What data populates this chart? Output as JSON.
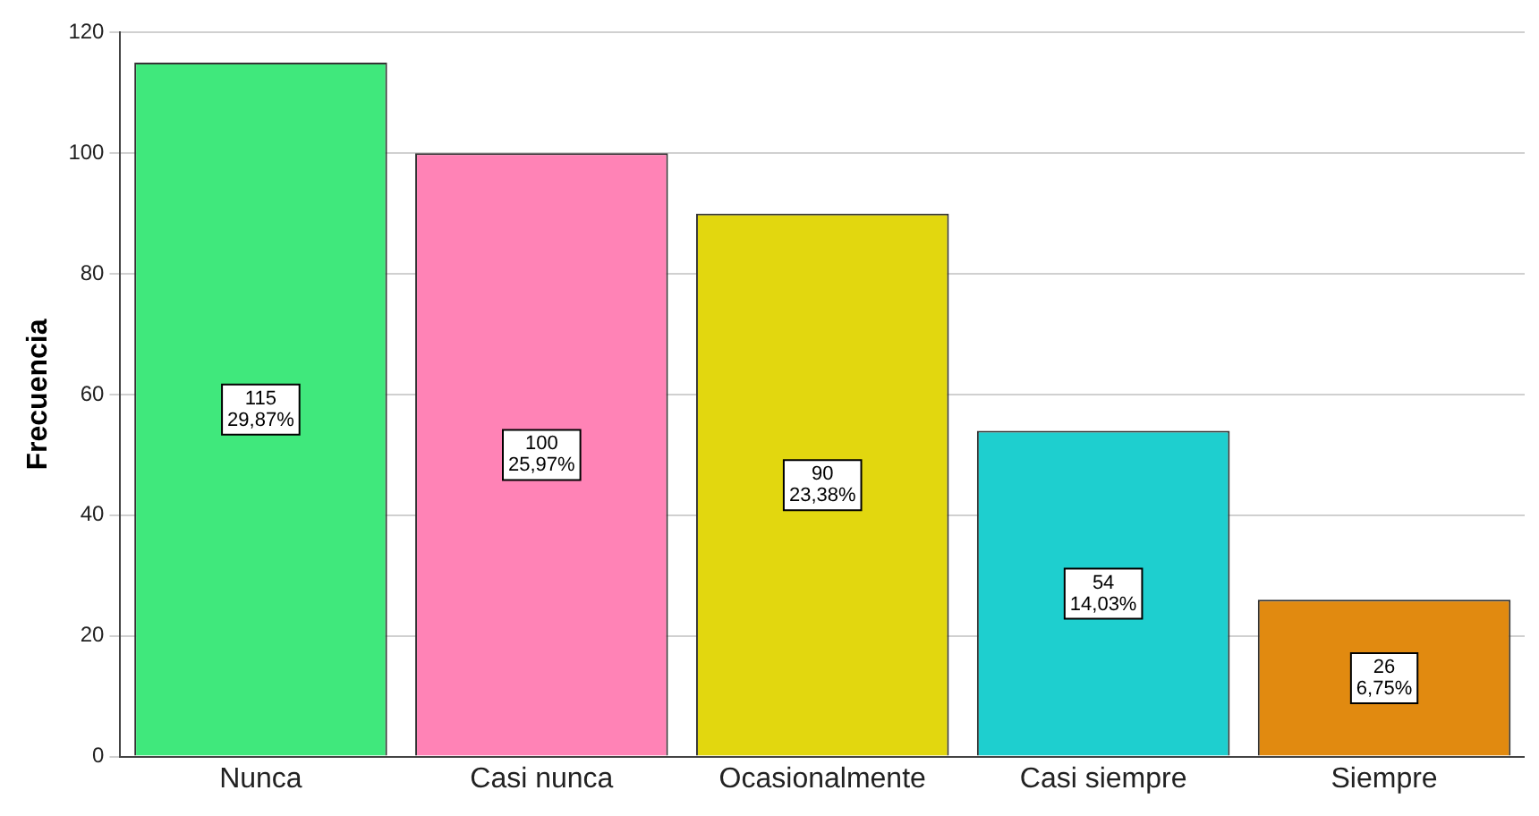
{
  "chart_data": {
    "type": "bar",
    "ylabel": "Frecuencia",
    "categories": [
      "Nunca",
      "Casi nunca",
      "Ocasionalmente",
      "Casi siempre",
      "Siempre"
    ],
    "values": [
      115,
      100,
      90,
      54,
      26
    ],
    "colors": [
      "#40e87c",
      "#ff83b6",
      "#e2d70f",
      "#1ecfcf",
      "#e18a10"
    ],
    "value_labels": [
      "115\n29,87%",
      "100\n25,97%",
      "90\n23,38%",
      "54\n14,03%",
      "26\n6,75%"
    ],
    "ylim": [
      0,
      120
    ],
    "yticks": [
      0,
      20,
      40,
      60,
      80,
      100,
      120
    ],
    "grid": "y",
    "legend": false
  }
}
